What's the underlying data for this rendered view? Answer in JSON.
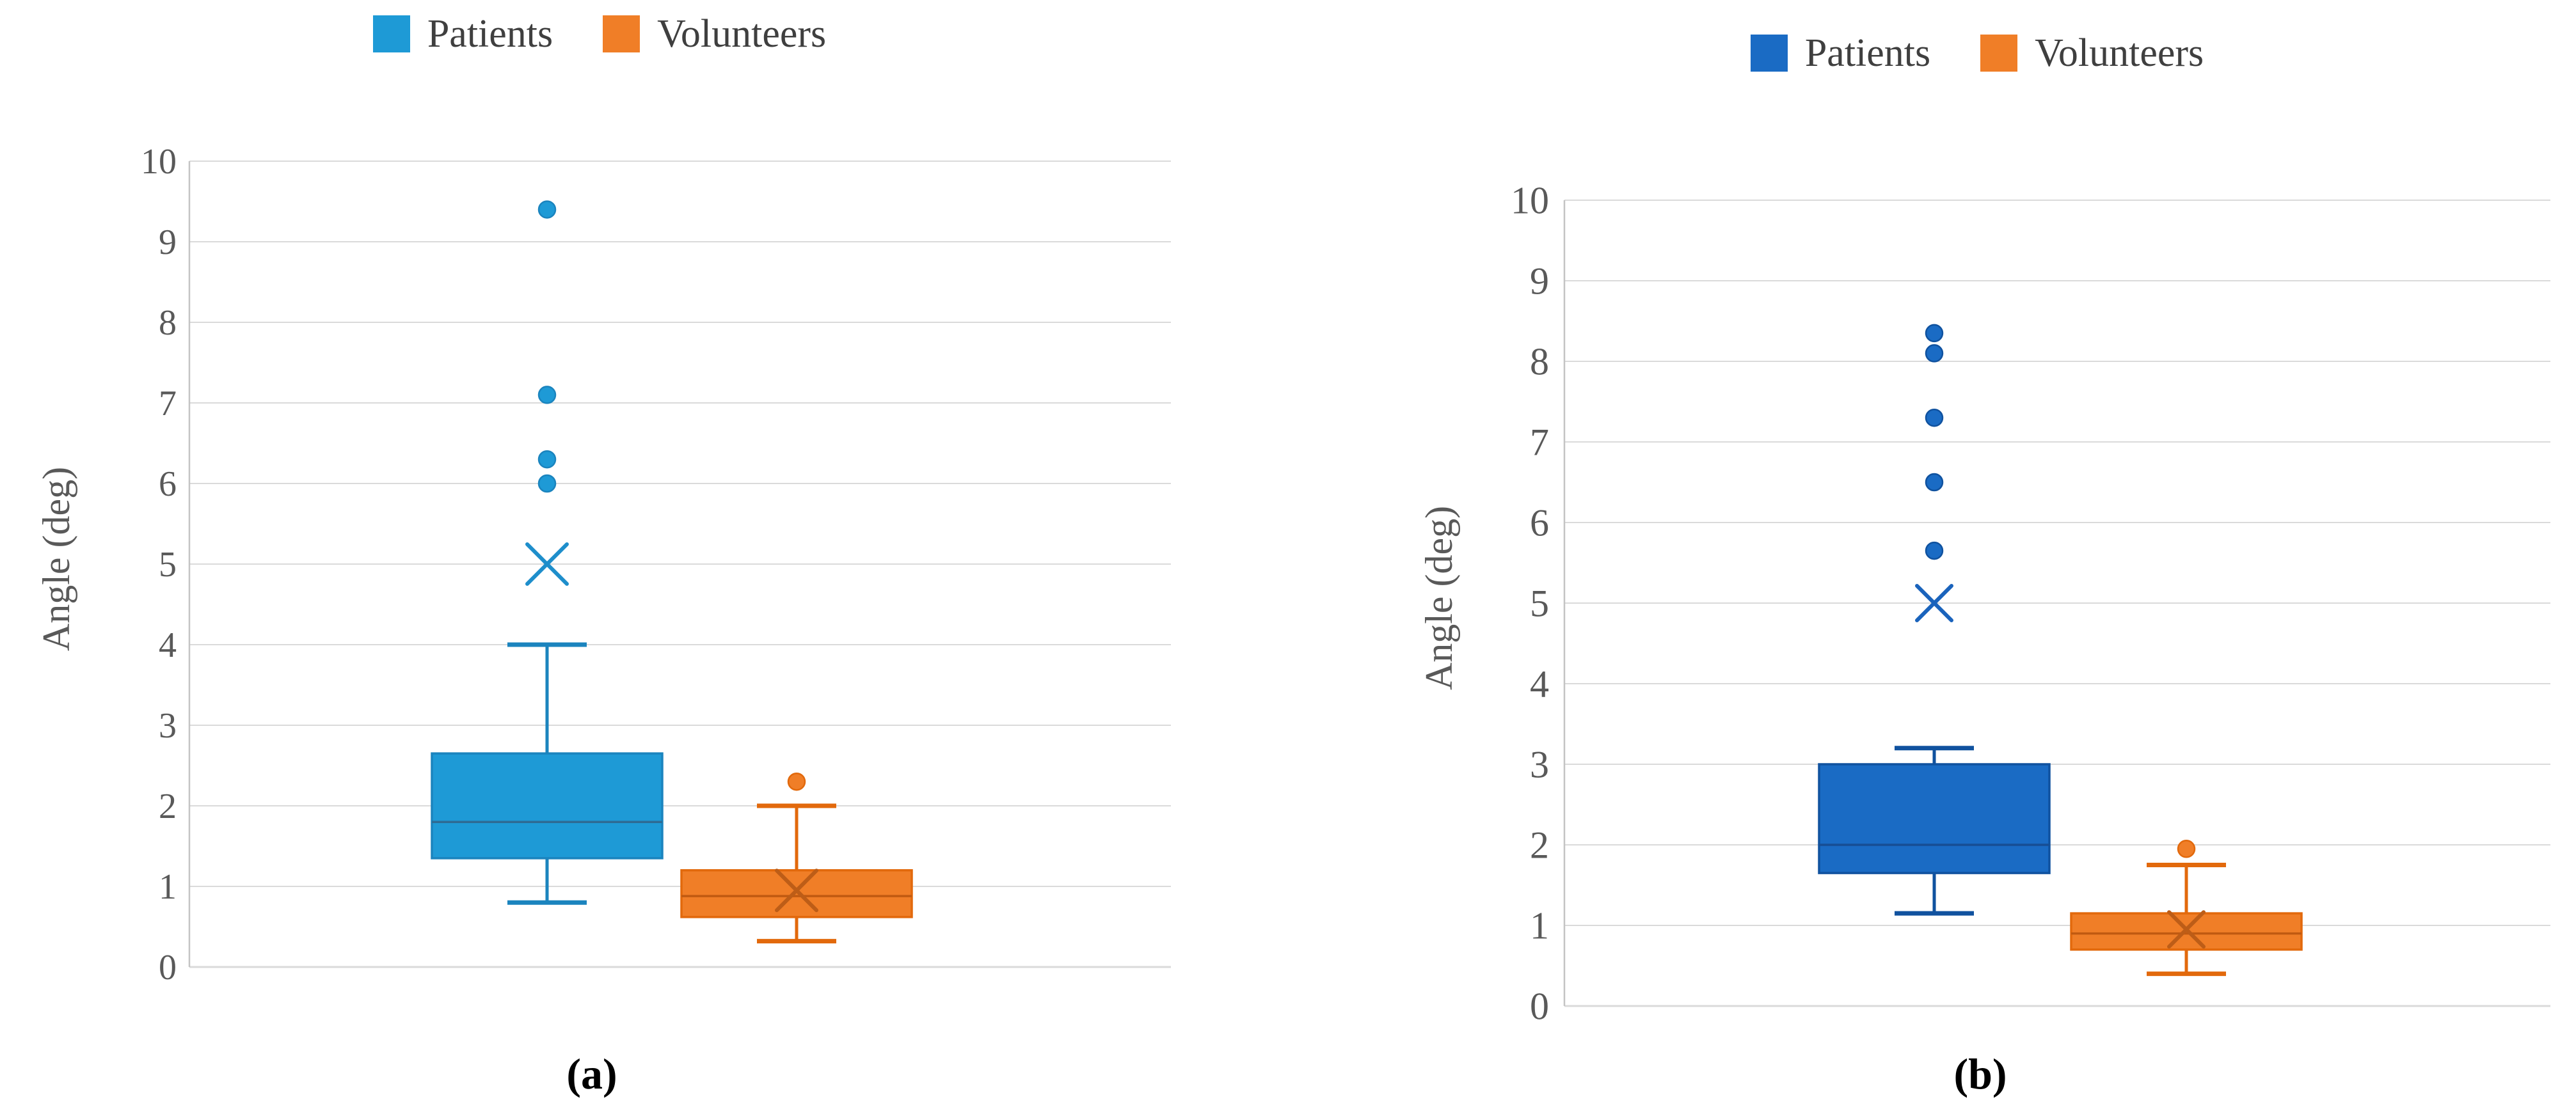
{
  "figure": {
    "background": "#ffffff",
    "grid_color": "#dadada",
    "axis_color": "#c4c4c4",
    "tick_text_color": "#595959",
    "legend_text_color": "#3f3f3f",
    "caption_text_color": "#000000"
  },
  "chart_data": [
    {
      "type": "box",
      "panel": "a",
      "caption": "(a)",
      "ylabel": "Angle (deg)",
      "ylim": [
        0,
        10
      ],
      "yticks": [
        0,
        1,
        2,
        3,
        4,
        5,
        6,
        7,
        8,
        9,
        10
      ],
      "grid": "horizontal-on",
      "legend_position": "top",
      "legend": [
        {
          "label": "Patients",
          "color": "#1e9ad6"
        },
        {
          "label": "Volunteers",
          "color": "#f07e27"
        }
      ],
      "series": [
        {
          "name": "Patients",
          "fill": "#1e9ad6",
          "stroke": "#1b84be",
          "median_stroke": "#2e6b94",
          "mean_stroke": "#1e8ecb",
          "whisker_low": 0.8,
          "q1": 1.35,
          "median": 1.8,
          "q3": 2.65,
          "whisker_high": 4.0,
          "mean": 5.0,
          "outliers": [
            6.0,
            6.3,
            7.1,
            9.4
          ]
        },
        {
          "name": "Volunteers",
          "fill": "#f07e27",
          "stroke": "#e2690c",
          "median_stroke": "#c05a11",
          "mean_stroke": "#bd5d17",
          "whisker_low": 0.32,
          "q1": 0.62,
          "median": 0.88,
          "q3": 1.2,
          "whisker_high": 2.0,
          "mean": 0.95,
          "outliers": [
            2.3
          ]
        }
      ]
    },
    {
      "type": "box",
      "panel": "b",
      "caption": "(b)",
      "ylabel": "Angle (deg)",
      "ylim": [
        0,
        10
      ],
      "yticks": [
        0,
        1,
        2,
        3,
        4,
        5,
        6,
        7,
        8,
        9,
        10
      ],
      "grid": "horizontal-on",
      "legend_position": "top",
      "legend": [
        {
          "label": "Patients",
          "color": "#1a6bc4"
        },
        {
          "label": "Volunteers",
          "color": "#f07e27"
        }
      ],
      "series": [
        {
          "name": "Patients",
          "fill": "#1a6bc4",
          "stroke": "#10529f",
          "median_stroke": "#174e94",
          "mean_stroke": "#1a63bc",
          "whisker_low": 1.15,
          "q1": 1.65,
          "median": 2.0,
          "q3": 3.0,
          "whisker_high": 3.2,
          "mean": 5.0,
          "outliers": [
            5.65,
            6.5,
            7.3,
            8.1,
            8.35
          ]
        },
        {
          "name": "Volunteers",
          "fill": "#f07e27",
          "stroke": "#e2690c",
          "median_stroke": "#c05a11",
          "mean_stroke": "#bd5d17",
          "whisker_low": 0.4,
          "q1": 0.7,
          "median": 0.9,
          "q3": 1.15,
          "whisker_high": 1.75,
          "mean": 0.95,
          "outliers": [
            1.95
          ]
        }
      ]
    }
  ]
}
